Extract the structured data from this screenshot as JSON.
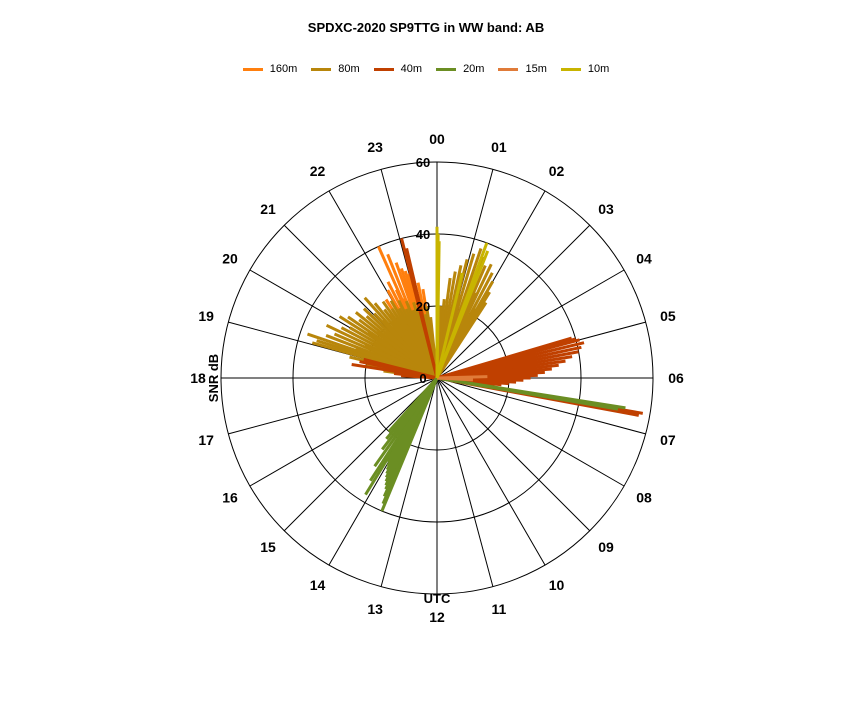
{
  "title": "SPDXC-2020  SP9TTG  in WW band: AB",
  "chart_data": {
    "type": "polar-bar",
    "rmax": 60,
    "ticks": [
      0,
      20,
      40,
      60
    ],
    "grid": true,
    "legend_position": "top",
    "rlabel": "SNR dB",
    "anglelabel": "UTC",
    "hours": [
      "00",
      "01",
      "02",
      "03",
      "04",
      "05",
      "06",
      "07",
      "08",
      "09",
      "10",
      "11",
      "12",
      "13",
      "14",
      "15",
      "16",
      "17",
      "18",
      "19",
      "20",
      "21",
      "22",
      "23"
    ],
    "series": [
      {
        "name": "160m",
        "color": "#ff7f0e",
        "points": [
          [
            22.4,
            40
          ],
          [
            22.55,
            37
          ],
          [
            22.7,
            34
          ],
          [
            22.8,
            32
          ],
          [
            22.9,
            31
          ],
          [
            23.0,
            30
          ],
          [
            23.1,
            29
          ],
          [
            23.25,
            27
          ],
          [
            23.4,
            25
          ],
          [
            21.6,
            22
          ],
          [
            21.8,
            26
          ],
          [
            22.05,
            28
          ],
          [
            22.2,
            30
          ],
          [
            22.35,
            27
          ],
          [
            22.5,
            24
          ],
          [
            22.65,
            22
          ],
          [
            21.9,
            20
          ],
          [
            22.1,
            18
          ]
        ]
      },
      {
        "name": "80m",
        "color": "#b8860b",
        "points": [
          [
            19.05,
            36
          ],
          [
            19.15,
            35
          ],
          [
            19.25,
            38
          ],
          [
            19.4,
            33
          ],
          [
            19.55,
            31
          ],
          [
            19.7,
            34
          ],
          [
            19.85,
            30
          ],
          [
            20.0,
            28
          ],
          [
            20.15,
            32
          ],
          [
            20.3,
            30
          ],
          [
            20.45,
            27
          ],
          [
            20.6,
            29
          ],
          [
            20.75,
            26
          ],
          [
            20.9,
            28
          ],
          [
            21.05,
            25
          ],
          [
            21.2,
            30
          ],
          [
            21.35,
            27
          ],
          [
            21.5,
            24
          ],
          [
            21.65,
            26
          ],
          [
            21.8,
            23
          ],
          [
            21.95,
            25
          ],
          [
            22.1,
            22
          ],
          [
            22.25,
            24
          ],
          [
            22.4,
            21
          ],
          [
            22.55,
            23
          ],
          [
            22.7,
            20
          ],
          [
            22.85,
            22
          ],
          [
            23.0,
            19
          ],
          [
            23.15,
            21
          ],
          [
            23.3,
            18
          ],
          [
            23.45,
            20
          ],
          [
            23.6,
            17
          ],
          [
            19.3,
            24
          ],
          [
            19.6,
            22
          ],
          [
            19.9,
            20
          ],
          [
            20.2,
            23
          ],
          [
            20.5,
            21
          ],
          [
            20.8,
            19
          ],
          [
            21.1,
            22
          ],
          [
            21.4,
            20
          ],
          [
            21.7,
            18
          ],
          [
            22.0,
            17
          ],
          [
            18.9,
            25
          ],
          [
            18.7,
            20
          ],
          [
            18.5,
            15
          ],
          [
            0.5,
            28
          ],
          [
            0.65,
            30
          ],
          [
            0.8,
            32
          ],
          [
            0.95,
            34
          ],
          [
            1.1,
            36
          ],
          [
            1.25,
            38
          ],
          [
            1.4,
            36
          ],
          [
            1.55,
            34
          ],
          [
            1.7,
            35
          ],
          [
            1.85,
            33
          ],
          [
            2.0,
            31
          ],
          [
            2.1,
            28
          ],
          [
            2.2,
            25
          ],
          [
            0.35,
            22
          ],
          [
            0.2,
            20
          ],
          [
            1.0,
            24
          ],
          [
            1.3,
            27
          ],
          [
            1.6,
            26
          ],
          [
            1.9,
            22
          ],
          [
            0.7,
            18
          ]
        ]
      },
      {
        "name": "40m",
        "color": "#c04000",
        "points": [
          [
            23.05,
            40
          ],
          [
            23.12,
            37
          ],
          [
            18.6,
            24
          ],
          [
            18.8,
            22
          ],
          [
            18.95,
            21
          ],
          [
            18.4,
            12
          ],
          [
            18.25,
            10
          ],
          [
            6.65,
            58
          ],
          [
            6.7,
            57
          ],
          [
            4.9,
            39
          ],
          [
            4.95,
            40
          ],
          [
            5.0,
            41
          ],
          [
            5.1,
            42
          ],
          [
            5.2,
            41
          ],
          [
            5.3,
            40
          ],
          [
            5.4,
            38
          ],
          [
            5.5,
            36
          ],
          [
            5.6,
            34
          ],
          [
            5.7,
            32
          ],
          [
            5.8,
            30
          ],
          [
            5.9,
            28
          ],
          [
            6.0,
            26
          ],
          [
            6.1,
            24
          ],
          [
            6.2,
            22
          ],
          [
            6.3,
            20
          ],
          [
            6.4,
            18
          ],
          [
            6.5,
            16
          ]
        ]
      },
      {
        "name": "20m",
        "color": "#6b8e23",
        "points": [
          [
            6.6,
            53
          ],
          [
            6.65,
            51
          ],
          [
            14.1,
            38
          ],
          [
            14.2,
            34
          ],
          [
            14.35,
            30
          ],
          [
            13.5,
            40
          ],
          [
            13.55,
            38
          ],
          [
            13.6,
            36
          ],
          [
            13.65,
            34
          ],
          [
            13.7,
            33
          ],
          [
            13.75,
            32
          ],
          [
            13.8,
            31
          ],
          [
            13.85,
            30
          ],
          [
            13.9,
            29
          ],
          [
            13.95,
            28
          ],
          [
            14.0,
            27
          ],
          [
            14.05,
            26
          ],
          [
            14.5,
            25
          ],
          [
            14.65,
            22
          ],
          [
            14.8,
            20
          ]
        ]
      },
      {
        "name": "15m",
        "color": "#e07b39",
        "points": [
          [
            5.9,
            14
          ],
          [
            6.2,
            10
          ]
        ]
      },
      {
        "name": "10m",
        "color": "#c8b400",
        "points": [
          [
            0.0,
            42
          ],
          [
            0.03,
            40
          ],
          [
            0.06,
            38
          ],
          [
            1.35,
            40
          ],
          [
            1.45,
            38
          ],
          [
            0.9,
            30
          ]
        ]
      }
    ]
  }
}
